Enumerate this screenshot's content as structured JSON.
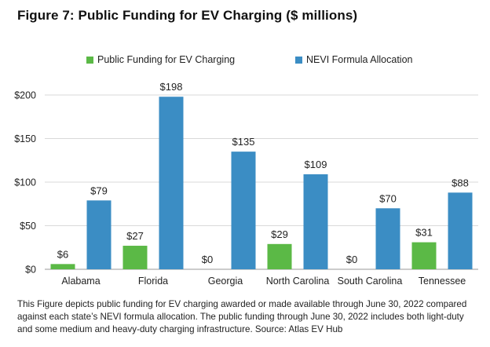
{
  "chart_data": {
    "type": "bar",
    "title": "Figure 7: Public Funding for EV Charging ($ millions)",
    "categories": [
      "Alabama",
      "Florida",
      "Georgia",
      "North Carolina",
      "South Carolina",
      "Tennessee"
    ],
    "series": [
      {
        "name": "Public Funding for EV Charging",
        "color": "#5bb946",
        "values": [
          6,
          27,
          0,
          29,
          0,
          31
        ]
      },
      {
        "name": "NEVI Formula Allocation",
        "color": "#3b8dc4",
        "values": [
          79,
          198,
          135,
          109,
          70,
          88
        ]
      }
    ],
    "value_prefix": "$",
    "ylim": [
      0,
      200
    ],
    "yticks": [
      0,
      50,
      100,
      150,
      200
    ],
    "ytick_labels": [
      "$0",
      "$50",
      "$100",
      "$150",
      "$200"
    ],
    "xlabel": "",
    "ylabel": "",
    "grid": true,
    "legend_position": "top-center"
  },
  "caption": "This Figure depicts public funding for EV charging awarded or made available through June 30, 2022 compared against each state’s NEVI formula allocation. The public funding through June 30, 2022 includes both light-duty and some medium and heavy-duty charging infrastructure. Source: Atlas EV Hub"
}
